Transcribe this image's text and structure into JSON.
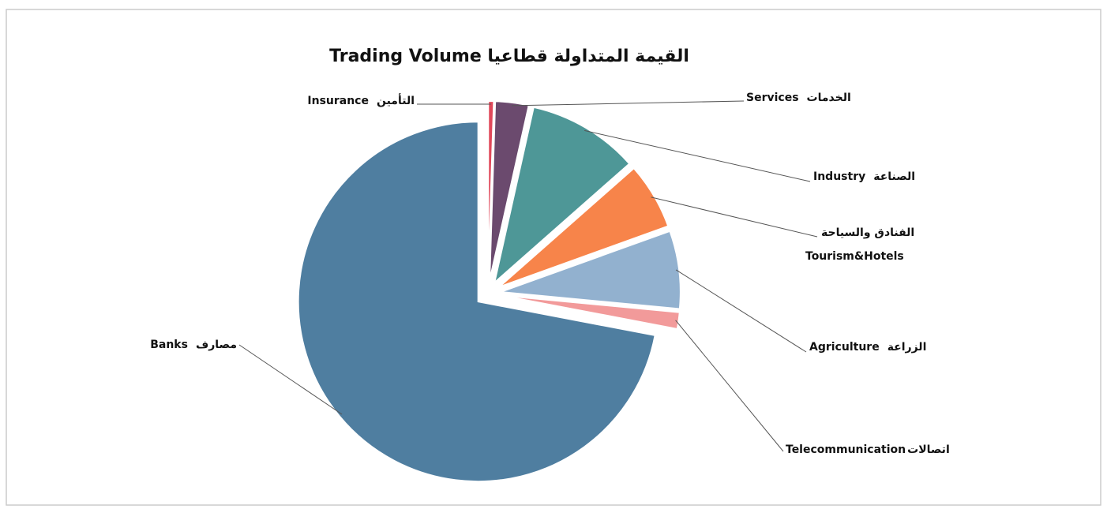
{
  "chart_data": {
    "type": "pie",
    "title": "Trading Volume القيمة المتداولة قطاعيا",
    "categories": [
      "Insurance",
      "Services",
      "Industry",
      "Tourism&Hotels",
      "Agriculture",
      "Telecommunication",
      "Banks"
    ],
    "categories_ar": [
      "التأمين",
      "الخدمات",
      "الصناعة",
      "الفنادق والسياحة",
      "الزراعة",
      "اتصالات",
      "مصارف"
    ],
    "values": [
      0.5,
      3,
      10,
      6,
      7,
      1.5,
      72
    ],
    "colors": [
      "#e0485a",
      "#6b4a6e",
      "#4e9797",
      "#f7844a",
      "#92b1cf",
      "#f29a9a",
      "#4f7ea0"
    ]
  }
}
